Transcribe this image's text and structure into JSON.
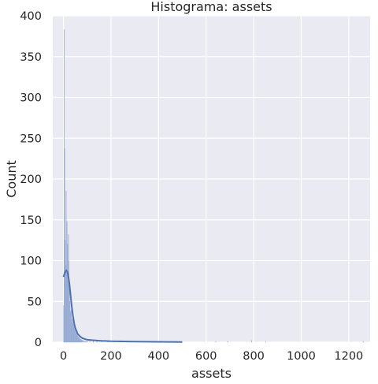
{
  "chart_data": {
    "type": "histogram",
    "title": "Histograma: assets",
    "xlabel": "assets",
    "ylabel": "Count",
    "xlim": [
      -45,
      1290
    ],
    "ylim": [
      0,
      400
    ],
    "xticks": [
      0,
      200,
      400,
      600,
      800,
      1000,
      1200
    ],
    "yticks": [
      0,
      50,
      100,
      150,
      200,
      250,
      300,
      350,
      400
    ],
    "grid": true,
    "background": "#eaeaf2",
    "bar_color": "#a9b9da",
    "bar_edge": "#8ea4cf",
    "kde_color": "#4c72b0",
    "bin_width": 2,
    "bins": [
      [
        0,
        45
      ],
      [
        2,
        383
      ],
      [
        4,
        237
      ],
      [
        6,
        125
      ],
      [
        8,
        95
      ],
      [
        10,
        185
      ],
      [
        12,
        90
      ],
      [
        14,
        148
      ],
      [
        16,
        120
      ],
      [
        18,
        80
      ],
      [
        20,
        132
      ],
      [
        22,
        100
      ],
      [
        24,
        65
      ],
      [
        26,
        50
      ],
      [
        28,
        38
      ],
      [
        30,
        35
      ],
      [
        32,
        40
      ],
      [
        34,
        28
      ],
      [
        36,
        24
      ],
      [
        38,
        30
      ],
      [
        40,
        22
      ],
      [
        42,
        18
      ],
      [
        44,
        25
      ],
      [
        46,
        16
      ],
      [
        48,
        14
      ],
      [
        50,
        12
      ],
      [
        52,
        10
      ],
      [
        54,
        15
      ],
      [
        56,
        9
      ],
      [
        58,
        8
      ],
      [
        60,
        7
      ],
      [
        62,
        6
      ],
      [
        64,
        5
      ],
      [
        66,
        5
      ],
      [
        68,
        4
      ],
      [
        70,
        4
      ],
      [
        72,
        3
      ],
      [
        74,
        3
      ],
      [
        76,
        3
      ],
      [
        78,
        2
      ],
      [
        80,
        2
      ],
      [
        84,
        2
      ],
      [
        88,
        1
      ],
      [
        92,
        1
      ],
      [
        96,
        1
      ],
      [
        100,
        1
      ],
      [
        110,
        1
      ],
      [
        125,
        1
      ],
      [
        140,
        1
      ],
      [
        160,
        1
      ],
      [
        185,
        1
      ],
      [
        210,
        1
      ],
      [
        240,
        1
      ],
      [
        275,
        1
      ],
      [
        310,
        1
      ],
      [
        360,
        1
      ],
      [
        410,
        1
      ],
      [
        640,
        1
      ],
      [
        690,
        1
      ],
      [
        790,
        2
      ],
      [
        850,
        1
      ],
      [
        1260,
        1
      ]
    ],
    "kde": {
      "x": [
        0,
        3,
        6,
        9,
        12,
        15,
        18,
        21,
        25,
        30,
        35,
        40,
        45,
        50,
        60,
        70,
        80,
        90,
        100,
        120,
        140,
        160,
        200,
        250,
        300,
        400,
        500
      ],
      "y": [
        80,
        83,
        85,
        87,
        88,
        87,
        85,
        80,
        72,
        58,
        44,
        32,
        23,
        17,
        10,
        7,
        5,
        4,
        3,
        2.5,
        2,
        1.6,
        1.2,
        1,
        0.8,
        0.5,
        0.2
      ]
    }
  }
}
